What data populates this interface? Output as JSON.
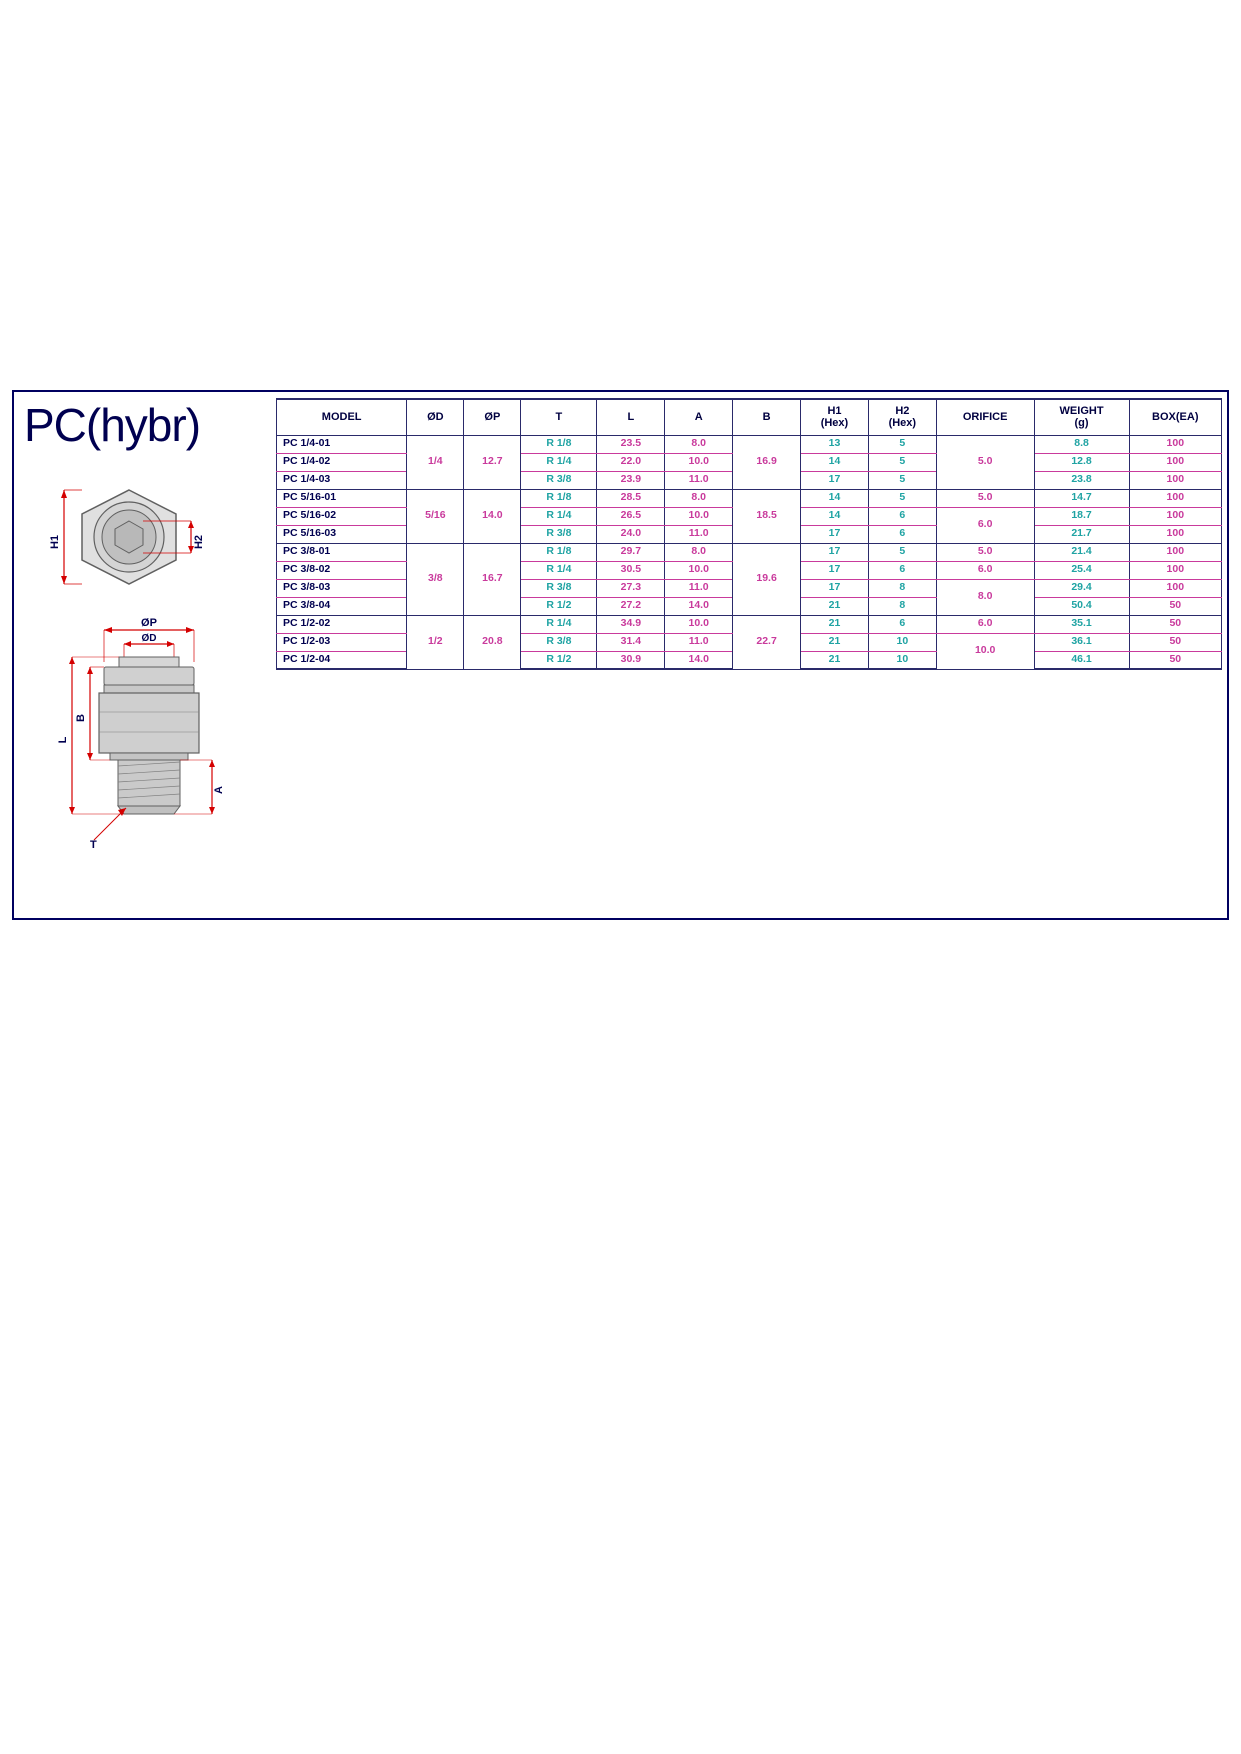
{
  "title": "PC(hybr)",
  "colors": {
    "frame_border": "#000060",
    "table_border": "#2a2a6a",
    "row_divider": "#c93a9c",
    "teal_text": "#1fa3a3",
    "magenta_text": "#c93a9c",
    "title_color": "#000050",
    "dim_red": "#d40000",
    "hex_stroke": "#707070",
    "hex_fill": "#cfcfcf",
    "fitting_fill": "#d0d0d0"
  },
  "table": {
    "columns": [
      {
        "key": "model",
        "label": "MODEL"
      },
      {
        "key": "od",
        "label": "ØD"
      },
      {
        "key": "op",
        "label": "ØP"
      },
      {
        "key": "t",
        "label": "T"
      },
      {
        "key": "l",
        "label": "L"
      },
      {
        "key": "a",
        "label": "A"
      },
      {
        "key": "b",
        "label": "B"
      },
      {
        "key": "h1",
        "label": "H1\n(Hex)"
      },
      {
        "key": "h2",
        "label": "H2\n(Hex)"
      },
      {
        "key": "orifice",
        "label": "ORIFICE"
      },
      {
        "key": "weight",
        "label": "WEIGHT\n(g)"
      },
      {
        "key": "box",
        "label": "BOX(EA)"
      }
    ],
    "groups": [
      {
        "od": "1/4",
        "op": "12.7",
        "b": "16.9",
        "rows": [
          {
            "model": "PC 1/4-01",
            "t": "R 1/8",
            "l": "23.5",
            "a": "8.0",
            "h1": "13",
            "h2": "5",
            "orifice": "5.0",
            "weight": "8.8",
            "box": "100"
          },
          {
            "model": "PC 1/4-02",
            "t": "R 1/4",
            "l": "22.0",
            "a": "10.0",
            "h1": "14",
            "h2": "5",
            "orifice": "5.0",
            "weight": "12.8",
            "box": "100"
          },
          {
            "model": "PC 1/4-03",
            "t": "R 3/8",
            "l": "23.9",
            "a": "11.0",
            "h1": "17",
            "h2": "5",
            "orifice": "5.0",
            "weight": "23.8",
            "box": "100"
          }
        ],
        "orifice_spans": [
          {
            "start": 0,
            "span": 3,
            "value": "5.0"
          }
        ]
      },
      {
        "od": "5/16",
        "op": "14.0",
        "b": "18.5",
        "rows": [
          {
            "model": "PC 5/16-01",
            "t": "R 1/8",
            "l": "28.5",
            "a": "8.0",
            "h1": "14",
            "h2": "5",
            "orifice": "5.0",
            "weight": "14.7",
            "box": "100"
          },
          {
            "model": "PC 5/16-02",
            "t": "R 1/4",
            "l": "26.5",
            "a": "10.0",
            "h1": "14",
            "h2": "6",
            "orifice": "6.0",
            "weight": "18.7",
            "box": "100"
          },
          {
            "model": "PC 5/16-03",
            "t": "R 3/8",
            "l": "24.0",
            "a": "11.0",
            "h1": "17",
            "h2": "6",
            "orifice": "6.0",
            "weight": "21.7",
            "box": "100"
          }
        ],
        "orifice_spans": [
          {
            "start": 0,
            "span": 1,
            "value": "5.0"
          },
          {
            "start": 1,
            "span": 2,
            "value": "6.0"
          }
        ]
      },
      {
        "od": "3/8",
        "op": "16.7",
        "b": "19.6",
        "rows": [
          {
            "model": "PC 3/8-01",
            "t": "R 1/8",
            "l": "29.7",
            "a": "8.0",
            "h1": "17",
            "h2": "5",
            "orifice": "5.0",
            "weight": "21.4",
            "box": "100"
          },
          {
            "model": "PC 3/8-02",
            "t": "R 1/4",
            "l": "30.5",
            "a": "10.0",
            "h1": "17",
            "h2": "6",
            "orifice": "6.0",
            "weight": "25.4",
            "box": "100"
          },
          {
            "model": "PC 3/8-03",
            "t": "R 3/8",
            "l": "27.3",
            "a": "11.0",
            "h1": "17",
            "h2": "8",
            "orifice": "8.0",
            "weight": "29.4",
            "box": "100"
          },
          {
            "model": "PC 3/8-04",
            "t": "R 1/2",
            "l": "27.2",
            "a": "14.0",
            "h1": "21",
            "h2": "8",
            "orifice": "8.0",
            "weight": "50.4",
            "box": "50"
          }
        ],
        "orifice_spans": [
          {
            "start": 0,
            "span": 1,
            "value": "5.0"
          },
          {
            "start": 1,
            "span": 1,
            "value": "6.0"
          },
          {
            "start": 2,
            "span": 2,
            "value": "8.0"
          }
        ]
      },
      {
        "od": "1/2",
        "op": "20.8",
        "b": "22.7",
        "rows": [
          {
            "model": "PC 1/2-02",
            "t": "R 1/4",
            "l": "34.9",
            "a": "10.0",
            "h1": "21",
            "h2": "6",
            "orifice": "6.0",
            "weight": "35.1",
            "box": "50"
          },
          {
            "model": "PC 1/2-03",
            "t": "R 3/8",
            "l": "31.4",
            "a": "11.0",
            "h1": "21",
            "h2": "10",
            "orifice": "10.0",
            "weight": "36.1",
            "box": "50"
          },
          {
            "model": "PC 1/2-04",
            "t": "R 1/2",
            "l": "30.9",
            "a": "14.0",
            "h1": "21",
            "h2": "10",
            "orifice": "10.0",
            "weight": "46.1",
            "box": "50"
          }
        ],
        "orifice_spans": [
          {
            "start": 0,
            "span": 1,
            "value": "6.0"
          },
          {
            "start": 1,
            "span": 2,
            "value": "10.0"
          }
        ]
      }
    ]
  },
  "diagram_labels": {
    "top": {
      "h1": "H1",
      "h2": "H2"
    },
    "side": {
      "op": "ØP",
      "od": "ØD",
      "b": "B",
      "l": "L",
      "a": "A",
      "t": "T"
    }
  }
}
